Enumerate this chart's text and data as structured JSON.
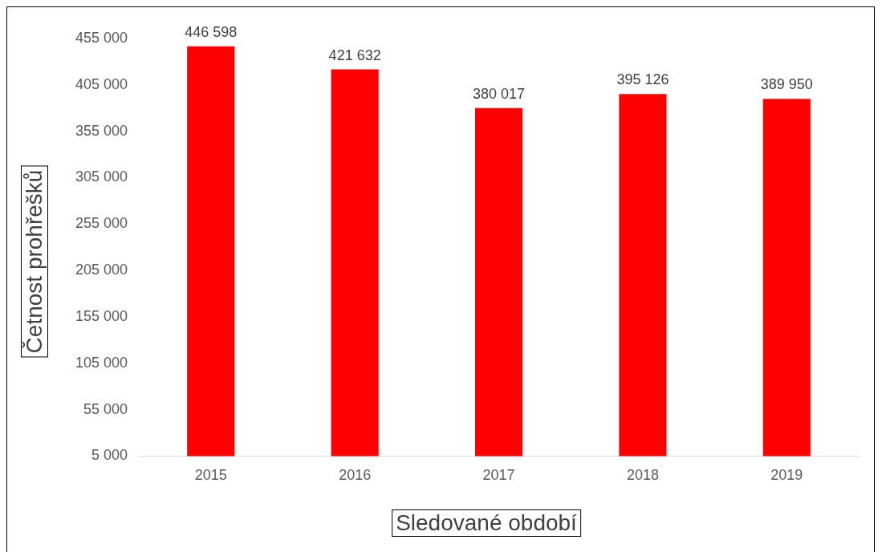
{
  "chart_data": {
    "type": "bar",
    "xlabel": "Sledované období",
    "ylabel": "Četnost prohřešků",
    "categories": [
      "2015",
      "2016",
      "2017",
      "2018",
      "2019"
    ],
    "values": [
      446598,
      421632,
      380017,
      395126,
      389950
    ],
    "color": "#ff0000",
    "data_labels": true,
    "grid": false,
    "legend": false,
    "ylim": [
      5000,
      455000
    ],
    "yticks": [
      {
        "value": 5000,
        "label": "5 000"
      },
      {
        "value": 55000,
        "label": "55 000"
      },
      {
        "value": 105000,
        "label": "105 000"
      },
      {
        "value": 155000,
        "label": "155 000"
      },
      {
        "value": 205000,
        "label": "205 000"
      },
      {
        "value": 255000,
        "label": "255 000"
      },
      {
        "value": 305000,
        "label": "305 000"
      },
      {
        "value": 355000,
        "label": "355 000"
      },
      {
        "value": 405000,
        "label": "405 000"
      },
      {
        "value": 455000,
        "label": "455 000"
      }
    ]
  }
}
